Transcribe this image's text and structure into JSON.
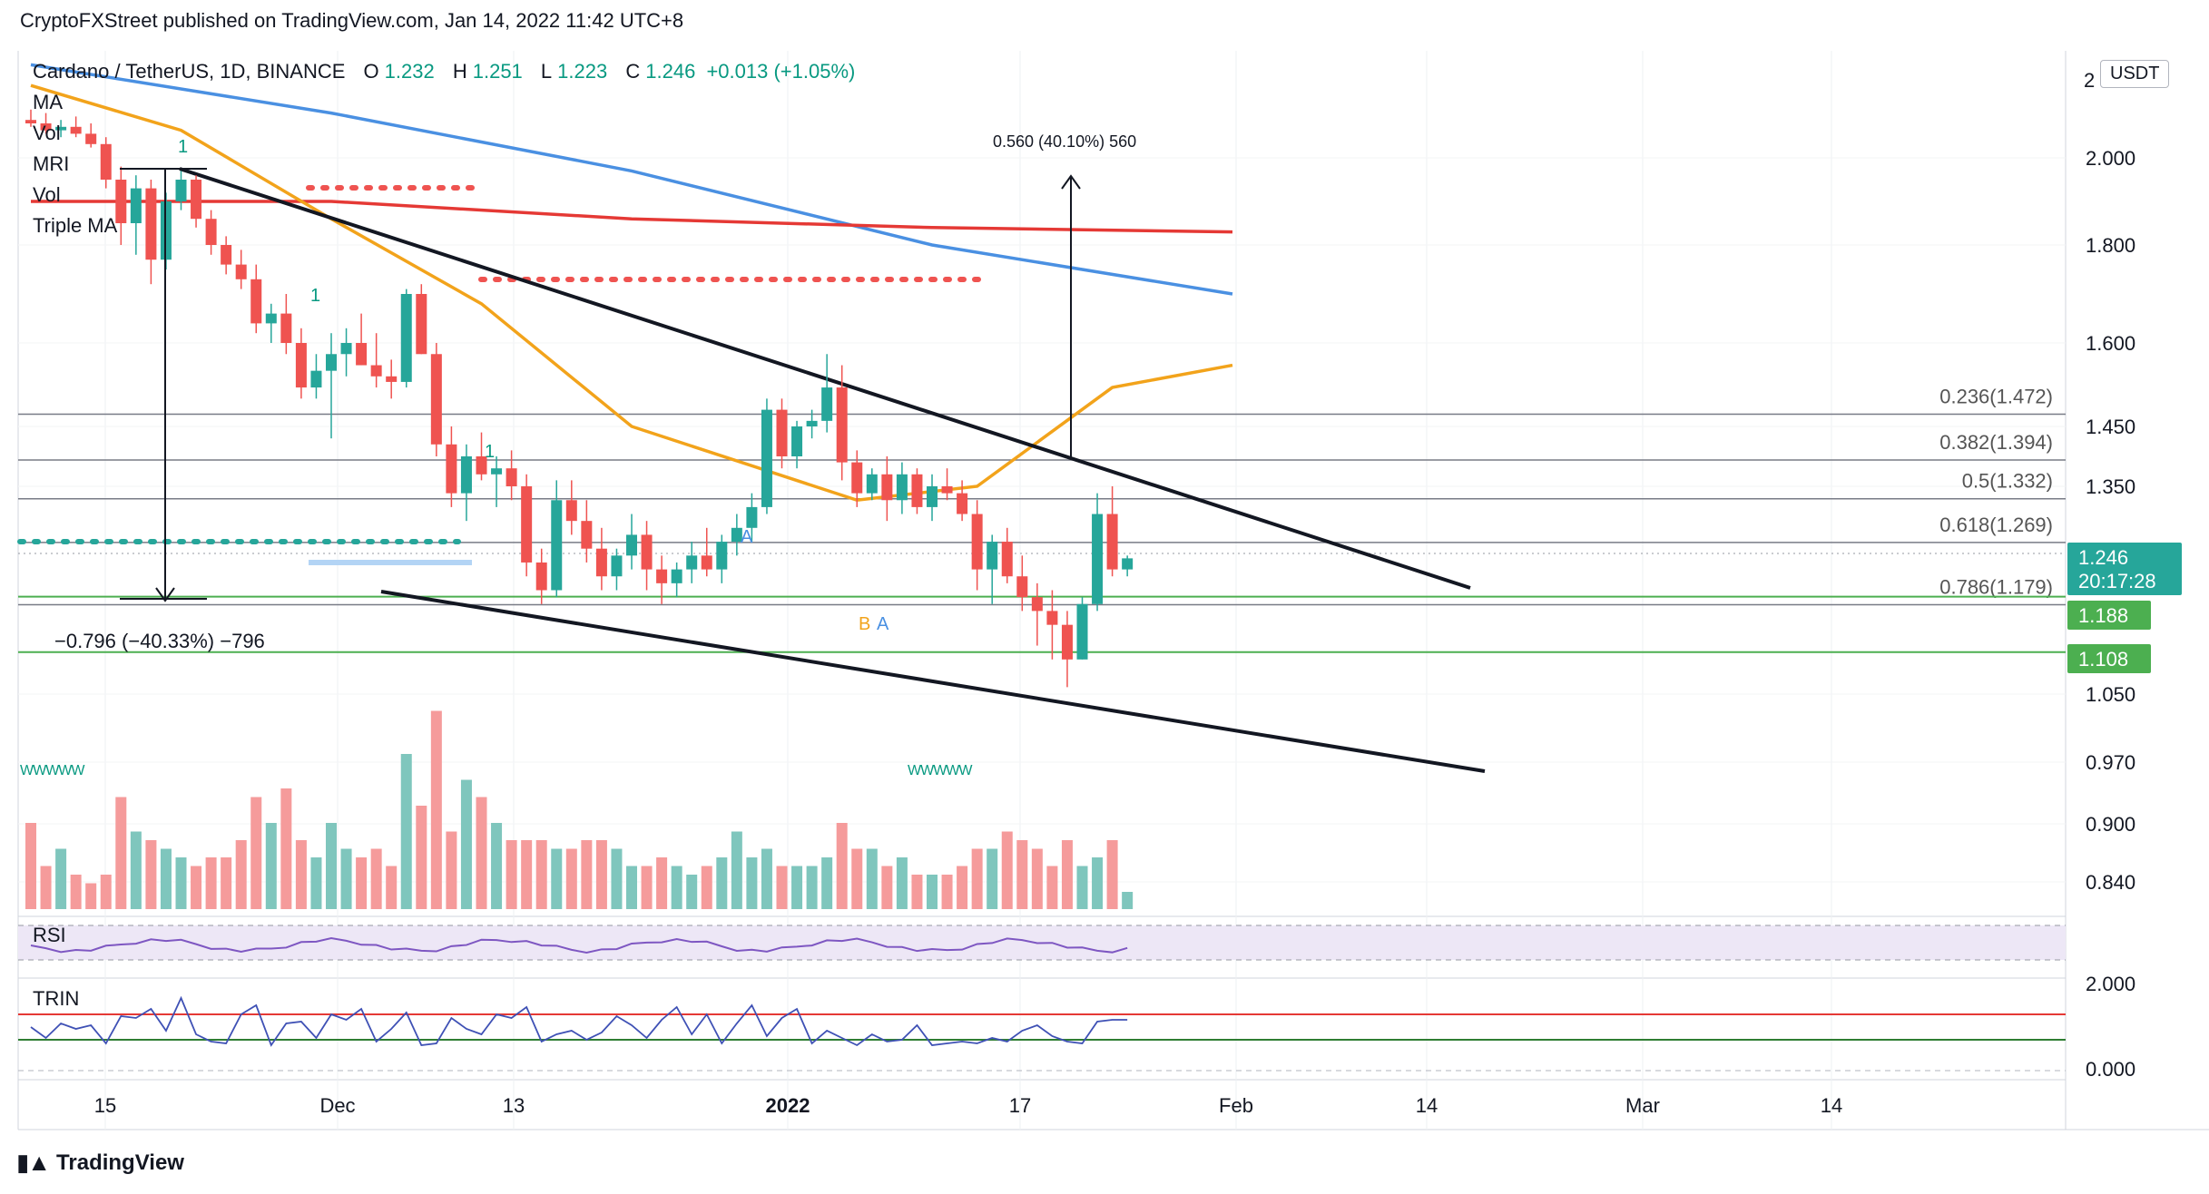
{
  "header": {
    "published": "CryptoFXStreet published on TradingView.com, Jan 14, 2022 11:42 UTC+8"
  },
  "legend": {
    "symbol": "Cardano / TetherUS, 1D, BINANCE",
    "open_key": "O",
    "open": "1.232",
    "high_key": "H",
    "high": "1.251",
    "low_key": "L",
    "low": "1.223",
    "close_key": "C",
    "close": "1.246",
    "change": "+0.013 (+1.05%)"
  },
  "indicators": [
    "MA",
    "Vol",
    "MRI",
    "Vol",
    "Triple MA"
  ],
  "pane_labels": {
    "rsi": "RSI",
    "trin": "TRIN"
  },
  "currency": "USDT",
  "footer": {
    "brand": "TradingView"
  },
  "chart_data": {
    "type": "candlestick",
    "price_axis": {
      "ticks": [
        "2.000",
        "1.800",
        "1.600",
        "1.450",
        "1.350",
        "1.050",
        "0.970",
        "0.900",
        "0.840"
      ],
      "top_tick_partial": "2"
    },
    "price_labels": [
      {
        "text": "1.246",
        "sub": "20:17:28",
        "color": "#26a69a"
      },
      {
        "text": "1.188",
        "color": "#4caf50"
      },
      {
        "text": "1.108",
        "color": "#4caf50"
      }
    ],
    "trin_axis": {
      "ticks": [
        "2.000",
        "0.000"
      ]
    },
    "time_axis": [
      "15",
      "Dec",
      "13",
      "2022",
      "17",
      "Feb",
      "14",
      "Mar",
      "14"
    ],
    "fib_levels": [
      {
        "label": "0.236(1.472)",
        "price": 1.472
      },
      {
        "label": "0.382(1.394)",
        "price": 1.394
      },
      {
        "label": "0.5(1.332)",
        "price": 1.332
      },
      {
        "label": "0.618(1.269)",
        "price": 1.269
      },
      {
        "label": "0.786(1.179)",
        "price": 1.179
      }
    ],
    "annotations": {
      "target": "0.560 (40.10%) 560",
      "drop": "−0.796 (−40.33%) −796",
      "marks": [
        "1",
        "1",
        "1",
        "A",
        "B",
        "A"
      ]
    },
    "candles": [
      [
        2.11,
        2.14,
        2.09,
        2.1
      ],
      [
        2.1,
        2.13,
        2.07,
        2.08
      ],
      [
        2.08,
        2.11,
        2.06,
        2.09
      ],
      [
        2.09,
        2.12,
        2.06,
        2.07
      ],
      [
        2.07,
        2.1,
        2.03,
        2.04
      ],
      [
        2.04,
        2.06,
        1.93,
        1.95
      ],
      [
        1.95,
        1.98,
        1.8,
        1.85
      ],
      [
        1.85,
        1.96,
        1.78,
        1.93
      ],
      [
        1.93,
        1.95,
        1.72,
        1.77
      ],
      [
        1.77,
        1.92,
        1.75,
        1.9
      ],
      [
        1.9,
        1.97,
        1.88,
        1.95
      ],
      [
        1.95,
        1.96,
        1.84,
        1.86
      ],
      [
        1.86,
        1.88,
        1.78,
        1.8
      ],
      [
        1.8,
        1.82,
        1.74,
        1.76
      ],
      [
        1.76,
        1.79,
        1.71,
        1.73
      ],
      [
        1.73,
        1.76,
        1.62,
        1.64
      ],
      [
        1.64,
        1.68,
        1.6,
        1.66
      ],
      [
        1.66,
        1.7,
        1.58,
        1.6
      ],
      [
        1.6,
        1.63,
        1.5,
        1.52
      ],
      [
        1.52,
        1.58,
        1.5,
        1.55
      ],
      [
        1.55,
        1.62,
        1.43,
        1.58
      ],
      [
        1.58,
        1.63,
        1.54,
        1.6
      ],
      [
        1.6,
        1.66,
        1.56,
        1.56
      ],
      [
        1.56,
        1.62,
        1.52,
        1.54
      ],
      [
        1.54,
        1.57,
        1.5,
        1.53
      ],
      [
        1.53,
        1.71,
        1.52,
        1.7
      ],
      [
        1.7,
        1.72,
        1.58,
        1.58
      ],
      [
        1.58,
        1.6,
        1.4,
        1.42
      ],
      [
        1.42,
        1.45,
        1.32,
        1.34
      ],
      [
        1.34,
        1.42,
        1.3,
        1.4
      ],
      [
        1.4,
        1.44,
        1.36,
        1.37
      ],
      [
        1.37,
        1.4,
        1.32,
        1.38
      ],
      [
        1.38,
        1.41,
        1.33,
        1.35
      ],
      [
        1.35,
        1.37,
        1.22,
        1.24
      ],
      [
        1.24,
        1.26,
        1.18,
        1.2
      ],
      [
        1.2,
        1.36,
        1.19,
        1.33
      ],
      [
        1.33,
        1.36,
        1.28,
        1.3
      ],
      [
        1.3,
        1.33,
        1.24,
        1.26
      ],
      [
        1.26,
        1.29,
        1.2,
        1.22
      ],
      [
        1.22,
        1.26,
        1.2,
        1.25
      ],
      [
        1.25,
        1.31,
        1.23,
        1.28
      ],
      [
        1.28,
        1.3,
        1.2,
        1.23
      ],
      [
        1.23,
        1.25,
        1.18,
        1.21
      ],
      [
        1.21,
        1.24,
        1.19,
        1.23
      ],
      [
        1.23,
        1.27,
        1.21,
        1.25
      ],
      [
        1.25,
        1.29,
        1.22,
        1.23
      ],
      [
        1.23,
        1.28,
        1.21,
        1.27
      ],
      [
        1.27,
        1.31,
        1.25,
        1.29
      ],
      [
        1.29,
        1.34,
        1.27,
        1.32
      ],
      [
        1.32,
        1.5,
        1.31,
        1.48
      ],
      [
        1.48,
        1.5,
        1.38,
        1.4
      ],
      [
        1.4,
        1.46,
        1.38,
        1.45
      ],
      [
        1.45,
        1.48,
        1.43,
        1.46
      ],
      [
        1.46,
        1.58,
        1.44,
        1.52
      ],
      [
        1.52,
        1.56,
        1.36,
        1.39
      ],
      [
        1.39,
        1.41,
        1.32,
        1.34
      ],
      [
        1.34,
        1.38,
        1.33,
        1.37
      ],
      [
        1.37,
        1.4,
        1.3,
        1.33
      ],
      [
        1.33,
        1.39,
        1.31,
        1.37
      ],
      [
        1.37,
        1.38,
        1.31,
        1.32
      ],
      [
        1.32,
        1.37,
        1.3,
        1.35
      ],
      [
        1.35,
        1.38,
        1.33,
        1.34
      ],
      [
        1.34,
        1.36,
        1.3,
        1.31
      ],
      [
        1.31,
        1.33,
        1.2,
        1.23
      ],
      [
        1.23,
        1.28,
        1.18,
        1.27
      ],
      [
        1.27,
        1.29,
        1.21,
        1.22
      ],
      [
        1.22,
        1.25,
        1.17,
        1.19
      ],
      [
        1.19,
        1.21,
        1.12,
        1.17
      ],
      [
        1.17,
        1.2,
        1.1,
        1.15
      ],
      [
        1.15,
        1.17,
        1.06,
        1.1
      ],
      [
        1.1,
        1.19,
        1.1,
        1.18
      ],
      [
        1.18,
        1.34,
        1.17,
        1.31
      ],
      [
        1.31,
        1.35,
        1.22,
        1.23
      ],
      [
        1.23,
        1.25,
        1.22,
        1.246
      ]
    ],
    "volume": [
      10,
      5,
      7,
      4,
      3,
      4,
      13,
      9,
      8,
      7,
      6,
      5,
      6,
      6,
      8,
      13,
      10,
      14,
      8,
      6,
      10,
      7,
      6,
      7,
      5,
      18,
      12,
      23,
      9,
      15,
      13,
      10,
      8,
      8,
      8,
      7,
      7,
      8,
      8,
      7,
      5,
      5,
      6,
      5,
      4,
      5,
      6,
      9,
      6,
      7,
      5,
      5,
      5,
      6,
      10,
      7,
      7,
      5,
      6,
      4,
      4,
      4,
      5,
      7,
      7,
      9,
      8,
      7,
      5,
      8,
      5,
      6,
      8,
      2
    ],
    "ma": [
      {
        "name": "MA slow",
        "color": "#4a90e2",
        "points": [
          [
            0,
            2.27
          ],
          [
            20,
            2.13
          ],
          [
            40,
            1.97
          ],
          [
            60,
            1.8
          ],
          [
            80,
            1.7
          ]
        ]
      },
      {
        "name": "MA mid",
        "color": "#e53935",
        "points": [
          [
            0,
            1.9
          ],
          [
            20,
            1.9
          ],
          [
            40,
            1.86
          ],
          [
            60,
            1.84
          ],
          [
            80,
            1.83
          ]
        ]
      },
      {
        "name": "MA fast",
        "color": "#f2a31b",
        "points": [
          [
            0,
            2.21
          ],
          [
            10,
            2.08
          ],
          [
            20,
            1.86
          ],
          [
            30,
            1.68
          ],
          [
            40,
            1.45
          ],
          [
            55,
            1.33
          ],
          [
            63,
            1.35
          ],
          [
            72,
            1.52
          ],
          [
            80,
            1.56
          ]
        ]
      }
    ]
  }
}
